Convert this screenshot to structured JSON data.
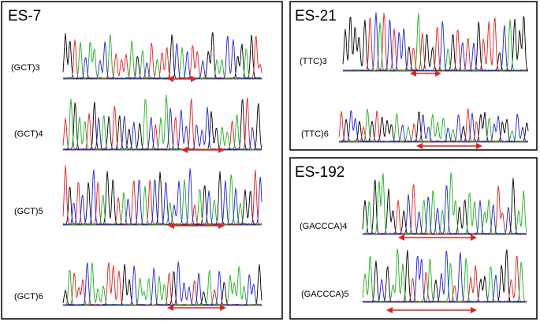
{
  "panels": [
    {
      "title": "ES-7",
      "traces": [
        "(GCT)3",
        "(GCT)4",
        "(GCT)5",
        "(GCT)6"
      ]
    },
    {
      "title": "ES-21",
      "traces": [
        "(TTC)3",
        "(TTC)6"
      ]
    },
    {
      "title": "ES-192",
      "traces": [
        "(GACCCA)4",
        "(GACCCA)5"
      ]
    }
  ]
}
